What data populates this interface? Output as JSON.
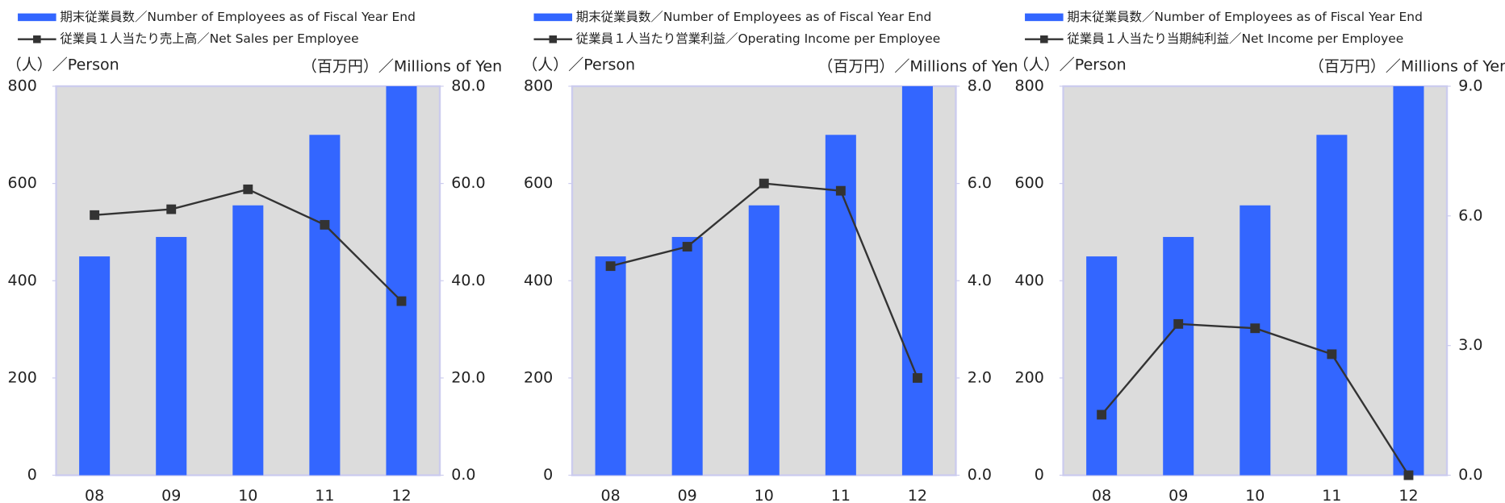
{
  "chart_data": [
    {
      "type": "bar_line",
      "ylabel": "（人）／Person",
      "y2label": "（百万円）／Millions of Yen",
      "categories": [
        "08",
        "09",
        "10",
        "11",
        "12"
      ],
      "series": [
        {
          "name": "期末従業員数／Number of Employees as of  Fiscal Year End",
          "color": "#3366ff",
          "values": [
            450,
            490,
            555,
            700,
            800
          ]
        },
        {
          "name": "従業員１人当たり売上高／Net Sales per Employee",
          "color": "#333333",
          "axis": "y2",
          "values": [
            53.5,
            54.7,
            58.8,
            51.5,
            35.8
          ]
        }
      ],
      "ylim": [
        0,
        800
      ],
      "yticks": [
        0,
        200,
        400,
        600,
        800
      ],
      "y2lim": [
        0,
        80
      ],
      "y2ticks": [
        {
          "value": 0,
          "label": "0.0"
        },
        {
          "value": 20,
          "label": "20.0"
        },
        {
          "value": 40,
          "label": "40.0"
        },
        {
          "value": 60,
          "label": "60.0"
        },
        {
          "value": 80,
          "label": "80.0"
        }
      ]
    },
    {
      "type": "bar_line",
      "ylabel": "（人）／Person",
      "y2label": "（百万円）／Millions of Yen",
      "categories": [
        "08",
        "09",
        "10",
        "11",
        "12"
      ],
      "series": [
        {
          "name": "期末従業員数／Number of Employees as of  Fiscal Year End",
          "color": "#3366ff",
          "values": [
            450,
            490,
            555,
            700,
            800
          ]
        },
        {
          "name": "従業員１人当たり営業利益／Operating Income per Employee",
          "color": "#333333",
          "axis": "y2",
          "values": [
            4.3,
            4.7,
            6.0,
            5.85,
            2.0
          ]
        }
      ],
      "ylim": [
        0,
        800
      ],
      "yticks": [
        0,
        200,
        400,
        600,
        800
      ],
      "y2lim": [
        0,
        8
      ],
      "y2ticks": [
        {
          "value": 0,
          "label": "0.0"
        },
        {
          "value": 2,
          "label": "2.0"
        },
        {
          "value": 4,
          "label": "4.0"
        },
        {
          "value": 6,
          "label": "6.0"
        },
        {
          "value": 8,
          "label": "8.0"
        }
      ]
    },
    {
      "type": "bar_line",
      "ylabel": "（人）／Person",
      "y2label": "（百万円）／Millions of Yen",
      "categories": [
        "08",
        "09",
        "10",
        "11",
        "12"
      ],
      "series": [
        {
          "name": "期末従業員数／Number of Employees as of  Fiscal Year End",
          "color": "#3366ff",
          "values": [
            450,
            490,
            555,
            700,
            800
          ]
        },
        {
          "name": "従業員１人当たり当期純利益／Net Income per Employee",
          "color": "#333333",
          "axis": "y2",
          "values": [
            1.4,
            3.5,
            3.4,
            2.8,
            0.0
          ]
        }
      ],
      "ylim": [
        0,
        800
      ],
      "yticks": [
        0,
        200,
        400,
        600,
        800
      ],
      "y2lim": [
        0,
        9
      ],
      "y2ticks": [
        {
          "value": 0,
          "label": "0.0"
        },
        {
          "value": 3,
          "label": "3.0"
        },
        {
          "value": 6,
          "label": "6.0"
        },
        {
          "value": 9,
          "label": "9.0"
        }
      ]
    }
  ]
}
